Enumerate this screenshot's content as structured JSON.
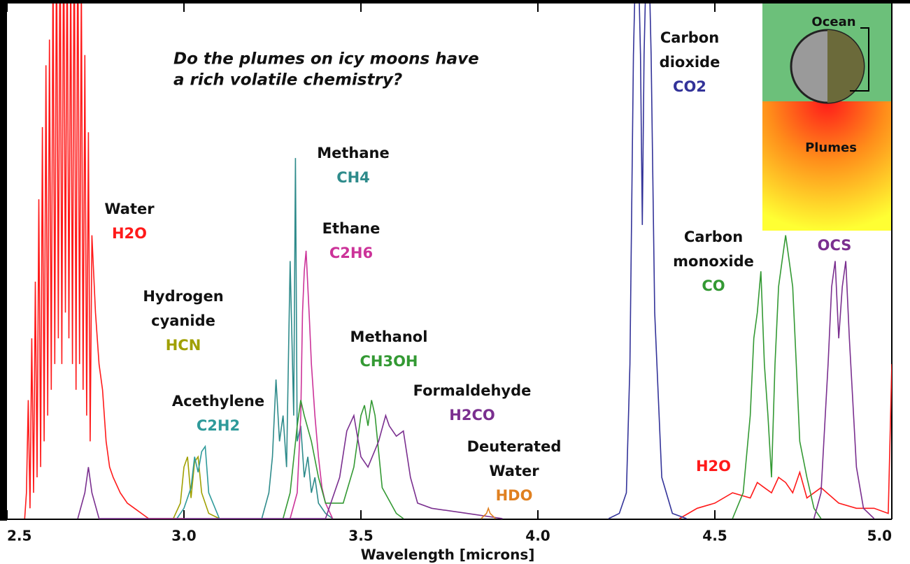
{
  "chart_data": {
    "type": "line",
    "title_lines": [
      "Do the plumes on icy moons have",
      "a rich volatile chemistry?"
    ],
    "x_label": "Wavelength [microns]",
    "xlim": [
      2.5,
      5.0
    ],
    "ylim": [
      0,
      1
    ],
    "xticks": [
      {
        "value": 2.5,
        "label": "2.5"
      },
      {
        "value": 3.0,
        "label": "3.0"
      },
      {
        "value": 3.5,
        "label": "3.5"
      },
      {
        "value": 4.0,
        "label": "4.0"
      },
      {
        "value": 4.5,
        "label": "4.5"
      },
      {
        "value": 5.0,
        "label": "5.0"
      }
    ],
    "series": [
      {
        "name": "H2O",
        "color": "#ff1a1a",
        "x": [
          2.55,
          2.555,
          2.56,
          2.565,
          2.57,
          2.575,
          2.58,
          2.585,
          2.59,
          2.595,
          2.6,
          2.605,
          2.61,
          2.615,
          2.62,
          2.625,
          2.63,
          2.635,
          2.64,
          2.645,
          2.65,
          2.655,
          2.66,
          2.665,
          2.67,
          2.675,
          2.68,
          2.685,
          2.69,
          2.695,
          2.7,
          2.705,
          2.71,
          2.715,
          2.72,
          2.725,
          2.73,
          2.735,
          2.74,
          2.75,
          2.76,
          2.77,
          2.78,
          2.79,
          2.8,
          2.82,
          2.84,
          2.86,
          2.88,
          2.9,
          2.95,
          3.0,
          4.0,
          4.4,
          4.45,
          4.5,
          4.55,
          4.6,
          4.62,
          4.64,
          4.66,
          4.68,
          4.7,
          4.72,
          4.74,
          4.76,
          4.8,
          4.85,
          4.9,
          4.95,
          4.99,
          5.0
        ],
        "values": [
          0,
          0.05,
          0.23,
          0.02,
          0.35,
          0.05,
          0.46,
          0.08,
          0.62,
          0.1,
          0.76,
          0.15,
          0.88,
          0.2,
          0.93,
          0.25,
          1.1,
          0.3,
          1.15,
          0.35,
          1.2,
          0.3,
          1.2,
          0.4,
          1.15,
          0.35,
          1.1,
          0.3,
          1.2,
          0.25,
          1.2,
          0.3,
          1.05,
          0.25,
          0.9,
          0.2,
          0.75,
          0.15,
          0.55,
          0.4,
          0.3,
          0.25,
          0.15,
          0.1,
          0.08,
          0.05,
          0.03,
          0.02,
          0.01,
          0,
          0,
          0,
          null,
          0,
          0.02,
          0.03,
          0.05,
          0.04,
          0.07,
          0.06,
          0.05,
          0.08,
          0.07,
          0.05,
          0.09,
          0.04,
          0.06,
          0.03,
          0.02,
          0.02,
          0.01,
          0.3
        ]
      },
      {
        "name": "HCN",
        "color": "#a0a000",
        "x": [
          2.97,
          2.99,
          3.0,
          3.01,
          3.02,
          3.03,
          3.04,
          3.05,
          3.07,
          3.1
        ],
        "values": [
          0,
          0.03,
          0.1,
          0.12,
          0.04,
          0.11,
          0.12,
          0.05,
          0.01,
          0
        ]
      },
      {
        "name": "C2H2",
        "color": "#2e9a9a",
        "x": [
          2.98,
          3.0,
          3.02,
          3.03,
          3.04,
          3.05,
          3.06,
          3.07,
          3.1
        ],
        "values": [
          0,
          0.02,
          0.06,
          0.12,
          0.09,
          0.13,
          0.14,
          0.05,
          0
        ]
      },
      {
        "name": "CH4",
        "color": "#2e8b8b",
        "x": [
          3.22,
          3.24,
          3.25,
          3.26,
          3.27,
          3.28,
          3.29,
          3.3,
          3.31,
          3.315,
          3.32,
          3.33,
          3.34,
          3.35,
          3.36,
          3.37,
          3.38,
          3.4,
          3.42
        ],
        "values": [
          0,
          0.05,
          0.12,
          0.27,
          0.15,
          0.2,
          0.1,
          0.5,
          0.2,
          0.7,
          0.15,
          0.18,
          0.08,
          0.12,
          0.05,
          0.08,
          0.03,
          0.01,
          0
        ]
      },
      {
        "name": "C2H6",
        "color": "#cc3399",
        "x": [
          3.3,
          3.32,
          3.33,
          3.335,
          3.34,
          3.345,
          3.35,
          3.355,
          3.36,
          3.37,
          3.38,
          3.39,
          3.4,
          3.42
        ],
        "values": [
          0,
          0.05,
          0.2,
          0.4,
          0.48,
          0.52,
          0.45,
          0.38,
          0.3,
          0.2,
          0.12,
          0.06,
          0.03,
          0
        ]
      },
      {
        "name": "CH3OH",
        "color": "#339933",
        "x": [
          3.28,
          3.3,
          3.32,
          3.33,
          3.34,
          3.36,
          3.38,
          3.4,
          3.45,
          3.48,
          3.5,
          3.51,
          3.52,
          3.53,
          3.54,
          3.56,
          3.6,
          3.62
        ],
        "values": [
          0,
          0.05,
          0.18,
          0.23,
          0.2,
          0.15,
          0.08,
          0.03,
          0.03,
          0.1,
          0.2,
          0.22,
          0.18,
          0.23,
          0.2,
          0.06,
          0.01,
          0
        ]
      },
      {
        "name": "H2CO",
        "color": "#7a2f8f",
        "x": [
          2.7,
          2.72,
          2.73,
          2.74,
          2.76,
          3.4,
          3.44,
          3.46,
          3.48,
          3.5,
          3.52,
          3.55,
          3.57,
          3.58,
          3.6,
          3.62,
          3.64,
          3.66,
          3.7,
          3.8,
          3.9
        ],
        "values": [
          0,
          0.05,
          0.1,
          0.05,
          0,
          0,
          0.08,
          0.17,
          0.2,
          0.12,
          0.1,
          0.15,
          0.2,
          0.18,
          0.16,
          0.17,
          0.08,
          0.03,
          0.02,
          0.01,
          0
        ]
      },
      {
        "name": "HDO",
        "color": "#e08020",
        "x": [
          3.84,
          3.855,
          3.86,
          3.865,
          3.88
        ],
        "values": [
          0,
          0.01,
          0.02,
          0.01,
          0
        ]
      },
      {
        "name": "CO2",
        "color": "#333399",
        "x": [
          4.2,
          4.23,
          4.25,
          4.26,
          4.27,
          4.28,
          4.29,
          4.295,
          4.3,
          4.31,
          4.32,
          4.33,
          4.35,
          4.38,
          4.42
        ],
        "values": [
          0,
          0.01,
          0.05,
          0.3,
          0.9,
          1.2,
          0.9,
          0.57,
          0.9,
          1.2,
          0.9,
          0.4,
          0.08,
          0.01,
          0
        ]
      },
      {
        "name": "CO",
        "color": "#339933",
        "x": [
          4.55,
          4.58,
          4.6,
          4.61,
          4.62,
          4.63,
          4.64,
          4.65,
          4.66,
          4.67,
          4.68,
          4.69,
          4.7,
          4.71,
          4.72,
          4.73,
          4.74,
          4.76,
          4.78,
          4.8
        ],
        "values": [
          0,
          0.05,
          0.2,
          0.35,
          0.4,
          0.48,
          0.3,
          0.2,
          0.08,
          0.3,
          0.45,
          0.5,
          0.55,
          0.5,
          0.45,
          0.3,
          0.15,
          0.08,
          0.02,
          0
        ]
      },
      {
        "name": "OCS",
        "color": "#7a2f8f",
        "x": [
          4.78,
          4.8,
          4.82,
          4.83,
          4.84,
          4.85,
          4.86,
          4.87,
          4.88,
          4.9,
          4.92,
          4.95
        ],
        "values": [
          0,
          0.05,
          0.3,
          0.45,
          0.5,
          0.35,
          0.45,
          0.5,
          0.35,
          0.1,
          0.02,
          0
        ]
      }
    ],
    "annotations": [
      {
        "lines": [
          "Water"
        ],
        "formula": "H2O",
        "color": "#ff1a1a"
      },
      {
        "lines": [
          "Hydrogen",
          "cyanide"
        ],
        "formula": "HCN",
        "color": "#a0a000"
      },
      {
        "lines": [
          "Acethylene"
        ],
        "formula": "C2H2",
        "color": "#2e9a9a"
      },
      {
        "lines": [
          "Methane"
        ],
        "formula": "CH4",
        "color": "#2e8b8b"
      },
      {
        "lines": [
          "Ethane"
        ],
        "formula": "C2H6",
        "color": "#cc3399"
      },
      {
        "lines": [
          "Methanol"
        ],
        "formula": "CH3OH",
        "color": "#339933"
      },
      {
        "lines": [
          "Formaldehyde"
        ],
        "formula": "H2CO",
        "color": "#7a2f8f"
      },
      {
        "lines": [
          "Deuterated",
          "Water"
        ],
        "formula": "HDO",
        "color": "#e08020"
      },
      {
        "lines": [
          "Carbon",
          "dioxide"
        ],
        "formula": "CO2",
        "color": "#333399"
      },
      {
        "lines": [
          "Carbon",
          "monoxide"
        ],
        "formula": "CO",
        "color": "#339933"
      },
      {
        "lines": [],
        "formula": "OCS",
        "color": "#7a2f8f"
      },
      {
        "lines": [],
        "formula": "H2O",
        "color": "#ff1a1a"
      }
    ],
    "inset_labels": [
      "Ocean",
      "Plumes"
    ]
  }
}
